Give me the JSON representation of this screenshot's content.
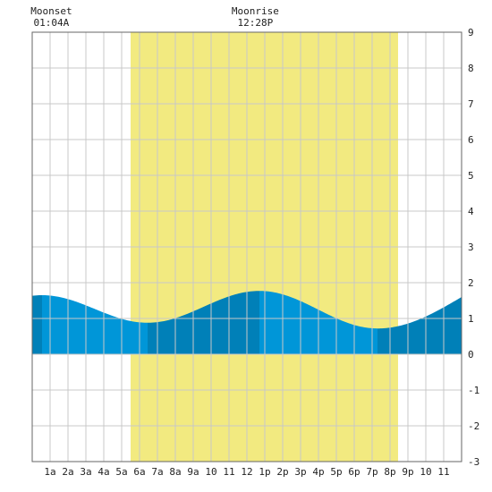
{
  "chart_data": {
    "type": "area",
    "ylim": [
      -3,
      9
    ],
    "xlim": [
      0,
      24
    ],
    "y_ticks": [
      "9",
      "8",
      "7",
      "6",
      "5",
      "4",
      "3",
      "2",
      "1",
      "0",
      "-1",
      "-2",
      "-3"
    ],
    "x_ticks": [
      "1a",
      "2a",
      "3a",
      "4a",
      "5a",
      "6a",
      "7a",
      "8a",
      "9a",
      "10",
      "11",
      "12",
      "1p",
      "2p",
      "3p",
      "4p",
      "5p",
      "6p",
      "7p",
      "8p",
      "9p",
      "10",
      "11"
    ],
    "grid": true,
    "daylight": {
      "start_hour": 5.5,
      "end_hour": 20.45
    },
    "moon_events": [
      {
        "label": "Moonset",
        "time": "01:04A",
        "hour": 1.07
      },
      {
        "label": "Moonrise",
        "time": "12:28P",
        "hour": 12.47
      }
    ],
    "tide_extremes": [
      {
        "hour": 0.55,
        "height": 1.65,
        "kind": "high"
      },
      {
        "hour": 6.45,
        "height": 0.88,
        "kind": "low"
      },
      {
        "hour": 12.7,
        "height": 1.77,
        "kind": "high"
      },
      {
        "hour": 19.3,
        "height": 0.72,
        "kind": "low"
      }
    ],
    "tide_end_height": 1.6,
    "band_breaks": [
      0.55,
      6.45,
      12.7,
      19.3
    ],
    "colors": {
      "background": "#ffffff",
      "daylight": "#f2ea80",
      "grid": "#c8c8c8",
      "tide_light": "#0096d8",
      "tide_dark": "#0080b8",
      "border": "#666666"
    }
  }
}
